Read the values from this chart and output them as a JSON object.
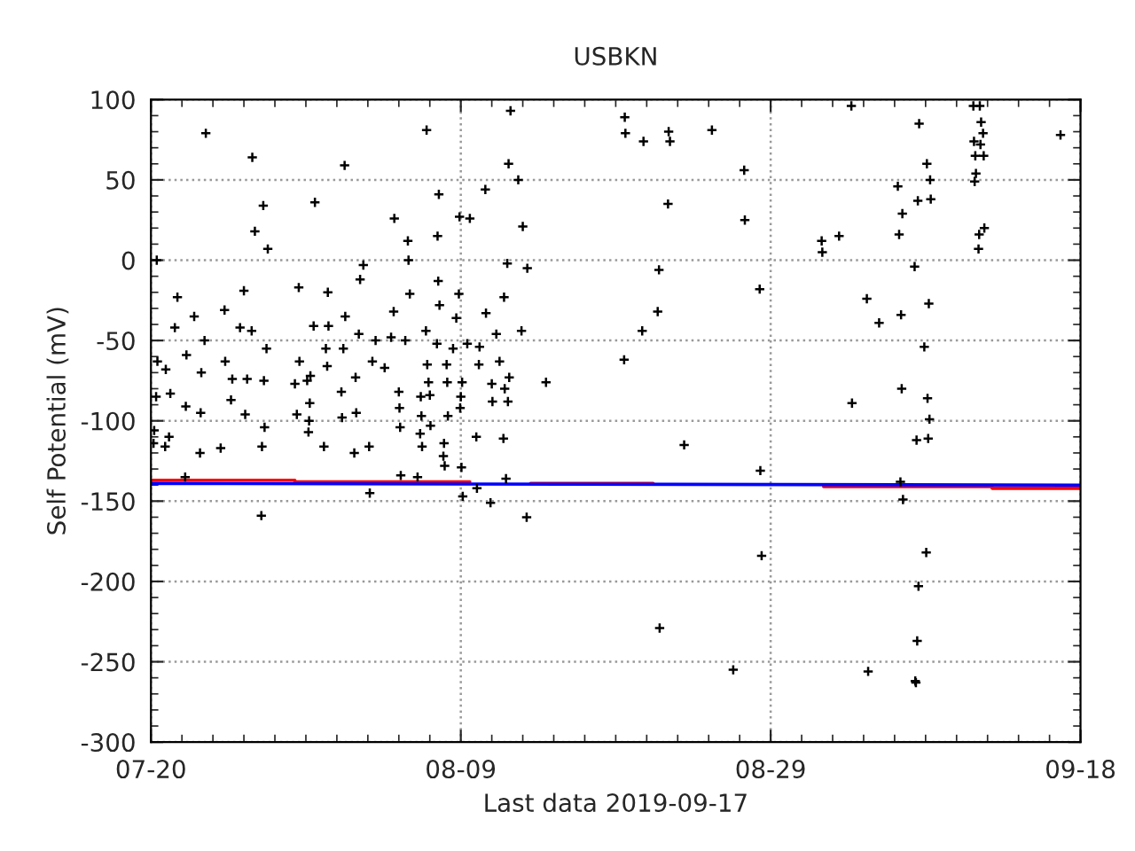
{
  "chart_data": {
    "type": "scatter",
    "title": "USBKN",
    "xlabel": "Last data 2019-09-17",
    "ylabel": "Self Potential (mV)",
    "xlim": [
      "2019-07-20",
      "2019-09-18"
    ],
    "xticks": [
      {
        "value": "2019-07-20",
        "label": "07-20"
      },
      {
        "value": "2019-08-09",
        "label": "08-09"
      },
      {
        "value": "2019-08-29",
        "label": "08-29"
      },
      {
        "value": "2019-09-18",
        "label": "09-18"
      }
    ],
    "ylim": [
      -300,
      100
    ],
    "yticks": [
      -300,
      -250,
      -200,
      -150,
      -100,
      -50,
      0,
      50,
      100
    ],
    "grid": true,
    "legend": false,
    "series": [
      {
        "color": "#000000",
        "marker": "cross",
        "x": [
          "2019-07-23T13:00",
          "2019-07-26T13:00",
          "2019-07-27T06:00",
          "2019-07-30T14:00",
          "2019-07-26T17:00",
          "2019-07-27T13:00",
          "2019-07-20T09:00",
          "2019-07-21T17:00",
          "2019-07-29T13:00",
          "2019-07-26T00:00",
          "2019-07-21T13:00",
          "2019-07-22T19:00",
          "2019-07-24T18:00",
          "2019-07-25T18:00",
          "2019-07-26T12:00",
          "2019-07-23T11:00",
          "2019-07-22T07:00",
          "2019-07-20T10:00",
          "2019-07-23T06:00",
          "2019-07-24T19:00",
          "2019-07-27T11:00",
          "2019-07-30T12:00",
          "2019-07-29T14:00",
          "2019-07-29T07:00",
          "2019-07-20T23:00",
          "2019-07-21T06:00",
          "2019-07-20T08:00",
          "2019-07-25T06:00",
          "2019-07-26T05:00",
          "2019-07-27T07:00",
          "2019-07-30T07:00",
          "2019-07-22T06:00",
          "2019-07-23T05:00",
          "2019-07-25T04:00",
          "2019-07-26T02:00",
          "2019-07-29T10:00",
          "2019-07-30T05:00",
          "2019-07-20T05:00",
          "2019-07-21T04:00",
          "2019-07-27T08:00",
          "2019-07-30T04:00",
          "2019-07-20T04:00",
          "2019-07-20T22:00",
          "2019-07-24T12:00",
          "2019-07-27T04:00",
          "2019-07-23T04:00",
          "2019-07-22T05:00",
          "2019-07-27T03:00",
          "2019-08-12T05:00",
          "2019-08-06T19:00",
          "2019-08-01T12:00",
          "2019-08-12T02:00",
          "2019-08-12T17:00",
          "2019-08-10T14:00",
          "2019-08-07T14:00",
          "2019-08-04T17:00",
          "2019-08-08T22:00",
          "2019-08-09T14:00",
          "2019-08-13T00:00",
          "2019-08-05T14:00",
          "2019-08-07T12:00",
          "2019-08-05T15:00",
          "2019-08-12T00:00",
          "2019-08-13T07:00",
          "2019-08-02T17:00",
          "2019-08-02T12:00",
          "2019-08-07T13:00",
          "2019-07-31T10:00",
          "2019-08-05T17:00",
          "2019-08-08T21:00",
          "2019-08-11T19:00",
          "2019-08-04T16:00",
          "2019-08-07T15:00",
          "2019-08-08T17:00",
          "2019-08-10T15:00",
          "2019-08-01T13:00",
          "2019-07-31T11:00",
          "2019-08-02T10:00",
          "2019-08-03T12:00",
          "2019-08-04T12:00",
          "2019-08-05T10:00",
          "2019-08-06T18:00",
          "2019-08-07T11:00",
          "2019-08-08T12:00",
          "2019-08-09T10:00",
          "2019-08-10T05:00",
          "2019-08-11T07:00",
          "2019-08-11T12:00",
          "2019-08-01T10:00",
          "2019-07-31T07:00",
          "2019-08-03T07:00",
          "2019-08-04T02:00",
          "2019-08-06T20:00",
          "2019-08-08T02:00",
          "2019-08-10T04:00",
          "2019-07-31T09:00",
          "2019-07-30T02:00",
          "2019-08-02T05:00",
          "2019-08-06T22:00",
          "2019-08-08T03:00",
          "2019-08-09T02:00",
          "2019-08-11T00:00",
          "2019-08-12T03:00",
          "2019-08-01T07:00",
          "2019-08-05T00:00",
          "2019-08-06T10:00",
          "2019-08-07T00:00",
          "2019-08-09T00:00",
          "2019-08-11T20:00",
          "2019-07-30T06:00",
          "2019-08-05T01:00",
          "2019-08-08T23:00",
          "2019-08-11T01:00",
          "2019-08-12T01:00",
          "2019-08-01T08:00",
          "2019-08-02T06:00",
          "2019-08-06T11:00",
          "2019-08-08T04:00",
          "2019-08-05T02:00",
          "2019-08-06T09:00",
          "2019-08-07T01:00",
          "2019-08-10T00:00",
          "2019-08-11T18:00",
          "2019-07-31T04:00",
          "2019-08-03T02:00",
          "2019-08-06T12:00",
          "2019-08-07T22:00",
          "2019-08-02T03:00",
          "2019-08-07T21:00",
          "2019-08-07T23:00",
          "2019-08-09T01:00",
          "2019-08-05T03:00",
          "2019-08-06T05:00",
          "2019-08-11T22:00",
          "2019-08-03T03:00",
          "2019-08-09T03:00",
          "2019-08-10T01:00",
          "2019-08-10T22:00",
          "2019-08-13T06:00",
          "2019-08-12T22:00",
          "2019-08-14T12:00",
          "2019-08-19T14:00",
          "2019-08-19T15:00",
          "2019-08-20T19:00",
          "2019-08-22T10:00",
          "2019-08-22T12:00",
          "2019-08-25T05:00",
          "2019-08-27T07:00",
          "2019-08-22T09:00",
          "2019-08-27T08:00",
          "2019-08-21T19:00",
          "2019-08-28T07:00",
          "2019-08-21T17:00",
          "2019-08-20T17:00",
          "2019-08-19T13:00",
          "2019-08-23T10:00",
          "2019-08-28T08:00",
          "2019-08-28T10:00",
          "2019-08-21T20:00",
          "2019-08-26T14:00",
          "2019-09-03T05:00",
          "2019-09-11T12:00",
          "2019-09-11T02:00",
          "2019-09-07T14:00",
          "2019-09-11T14:00",
          "2019-09-11T17:00",
          "2019-09-16T17:00",
          "2019-09-11T03:00",
          "2019-09-11T13:00",
          "2019-09-11T05:00",
          "2019-09-11T18:00",
          "2019-09-08T02:00",
          "2019-09-11T06:00",
          "2019-09-11T04:00",
          "2019-09-08T07:00",
          "2019-09-06T05:00",
          "2019-09-07T12:00",
          "2019-09-08T08:00",
          "2019-09-06T12:00",
          "2019-09-11T19:00",
          "2019-09-11T11:00",
          "2019-09-11T10:00",
          "2019-09-01T07:00",
          "2019-09-01T08:00",
          "2019-09-02T10:00",
          "2019-09-06T07:00",
          "2019-09-07T07:00",
          "2019-09-04T05:00",
          "2019-09-08T05:00",
          "2019-09-05T00:00",
          "2019-09-06T10:00",
          "2019-09-07T22:00",
          "2019-09-06T11:00",
          "2019-09-03T06:00",
          "2019-09-08T03:00",
          "2019-09-08T06:00",
          "2019-09-07T10:00",
          "2019-09-08T04:00",
          "2019-09-06T09:00",
          "2019-09-06T13:00",
          "2019-09-08T01:00",
          "2019-09-07T13:00",
          "2019-09-07T11:00",
          "2019-09-04T07:00",
          "2019-09-07T08:00",
          "2019-09-07T09:00"
        ],
        "values": [
          79,
          64,
          34,
          36,
          18,
          7,
          0,
          -23,
          -17,
          -19,
          -42,
          -35,
          -31,
          -42,
          -44,
          -50,
          -59,
          -63,
          -70,
          -63,
          -55,
          -41,
          -63,
          -77,
          -68,
          -83,
          -85,
          -74,
          -74,
          -75,
          -72,
          -91,
          -95,
          -87,
          -96,
          -96,
          -100,
          -106,
          -110,
          -104,
          -107,
          -114,
          -116,
          -117,
          -116,
          -120,
          -135,
          -159,
          93,
          81,
          59,
          60,
          50,
          44,
          41,
          26,
          27,
          26,
          21,
          12,
          15,
          0,
          -2,
          -5,
          -3,
          -12,
          -13,
          -20,
          -21,
          -21,
          -23,
          -32,
          -28,
          -36,
          -33,
          -35,
          -41,
          -46,
          -50,
          -48,
          -50,
          -44,
          -52,
          -55,
          -52,
          -54,
          -46,
          -63,
          -55,
          -55,
          -63,
          -67,
          -65,
          -65,
          -65,
          -66,
          -75,
          -73,
          -76,
          -76,
          -76,
          -77,
          -73,
          -82,
          -82,
          -85,
          -84,
          -85,
          -80,
          -89,
          -92,
          -92,
          -88,
          -88,
          -98,
          -95,
          -97,
          -97,
          -104,
          -108,
          -103,
          -110,
          -111,
          -116,
          -116,
          -116,
          -114,
          -120,
          -122,
          -128,
          -129,
          -134,
          -135,
          -136,
          -145,
          -147,
          -142,
          -151,
          -160,
          -44,
          -76,
          89,
          79,
          74,
          80,
          74,
          81,
          56,
          35,
          25,
          -6,
          -18,
          -32,
          -44,
          -62,
          -115,
          -131,
          -184,
          -229,
          -255,
          96,
          96,
          96,
          85,
          86,
          79,
          78,
          74,
          72,
          65,
          65,
          60,
          54,
          49,
          50,
          46,
          37,
          38,
          29,
          20,
          16,
          7,
          12,
          5,
          15,
          16,
          -4,
          -24,
          -27,
          -39,
          -34,
          -54,
          -80,
          -89,
          -86,
          -99,
          -112,
          -111,
          -138,
          -149,
          -182,
          -203,
          -237,
          -256,
          -262,
          -263
        ]
      },
      {
        "type": "line",
        "color": "#ff0000",
        "x": [
          "2019-07-20T00:00",
          "2019-07-29T07:00",
          "2019-07-29T07:00",
          "2019-08-09T14:00",
          "2019-08-11T00:00",
          "2019-08-13T12:00",
          "2019-08-21T10:00",
          "2019-08-26T00:00",
          "2019-09-01T10:00",
          "2019-09-12T07:00",
          "2019-09-12T07:00",
          "2019-09-18T00:00"
        ],
        "values": [
          -137,
          -137,
          -138,
          -138,
          null,
          -139,
          -139,
          null,
          -141,
          -141,
          -142,
          -142
        ]
      },
      {
        "type": "line",
        "color": "#0000ff",
        "x": [
          "2019-07-20T00:00",
          "2019-09-18T00:00"
        ],
        "values": [
          -139,
          -140
        ]
      }
    ]
  }
}
